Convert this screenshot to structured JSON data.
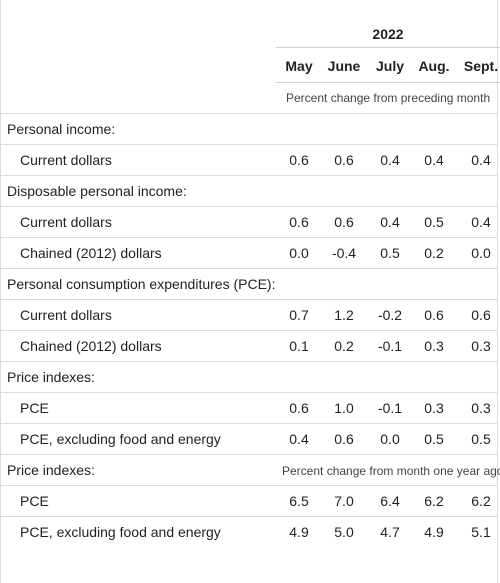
{
  "header": {
    "year": "2022",
    "months": [
      "May",
      "June",
      "July",
      "Aug.",
      "Sept."
    ],
    "note_top": "Percent change from preceding month"
  },
  "rows": [
    {
      "label": "Personal income:",
      "kind": "section",
      "values": []
    },
    {
      "label": "Current dollars",
      "kind": "sub",
      "values": [
        "0.6",
        "0.6",
        "0.4",
        "0.4",
        "0.4"
      ]
    },
    {
      "label": "Disposable personal income:",
      "kind": "section",
      "values": []
    },
    {
      "label": "Current dollars",
      "kind": "sub",
      "values": [
        "0.6",
        "0.6",
        "0.4",
        "0.5",
        "0.4"
      ]
    },
    {
      "label": "Chained (2012) dollars",
      "kind": "sub",
      "values": [
        "0.0",
        "-0.4",
        "0.5",
        "0.2",
        "0.0"
      ]
    },
    {
      "label": "Personal consumption expenditures (PCE):",
      "kind": "section",
      "values": []
    },
    {
      "label": "Current dollars",
      "kind": "sub",
      "values": [
        "0.7",
        "1.2",
        "-0.2",
        "0.6",
        "0.6"
      ]
    },
    {
      "label": "Chained (2012) dollars",
      "kind": "sub",
      "values": [
        "0.1",
        "0.2",
        "-0.1",
        "0.3",
        "0.3"
      ]
    },
    {
      "label": "Price indexes:",
      "kind": "section",
      "values": []
    },
    {
      "label": "PCE",
      "kind": "sub",
      "values": [
        "0.6",
        "1.0",
        "-0.1",
        "0.3",
        "0.3"
      ]
    },
    {
      "label": "PCE, excluding food and energy",
      "kind": "sub",
      "values": [
        "0.4",
        "0.6",
        "0.0",
        "0.5",
        "0.5"
      ]
    },
    {
      "label": "Price indexes:",
      "kind": "section",
      "values": [],
      "note": "Percent change from month one year ago"
    },
    {
      "label": "PCE",
      "kind": "sub",
      "values": [
        "6.5",
        "7.0",
        "6.4",
        "6.2",
        "6.2"
      ]
    },
    {
      "label": "PCE, excluding food and energy",
      "kind": "sub",
      "values": [
        "4.9",
        "5.0",
        "4.7",
        "4.9",
        "5.1"
      ]
    }
  ]
}
